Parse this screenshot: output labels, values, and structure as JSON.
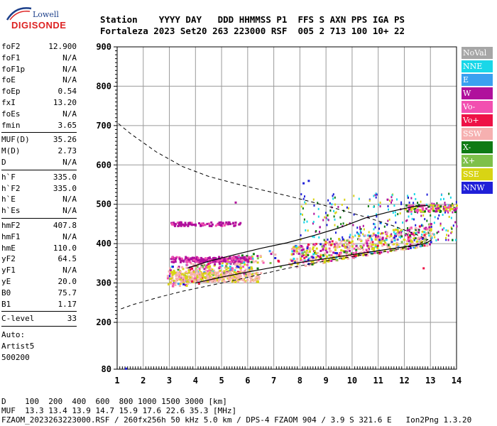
{
  "logo": {
    "top": "Lowell",
    "main": "DIGISONDE"
  },
  "header": {
    "labels": [
      "Station",
      "YYYY DAY",
      "DDD HHMMSS P1",
      "FFS S AXN PPS IGA PS"
    ],
    "values": [
      "Fortaleza",
      "2023 Set20",
      "263 223000 RSF",
      "005 2 713 100 10+ 22"
    ]
  },
  "params": {
    "group1": [
      {
        "name": "foF2",
        "value": "12.900"
      },
      {
        "name": "foF1",
        "value": "N/A"
      },
      {
        "name": "foF1p",
        "value": "N/A"
      },
      {
        "name": "foE",
        "value": "N/A"
      },
      {
        "name": "foEp",
        "value": "0.54"
      },
      {
        "name": "fxI",
        "value": "13.20"
      },
      {
        "name": "foEs",
        "value": "N/A"
      },
      {
        "name": "fmin",
        "value": "3.65"
      }
    ],
    "group2": [
      {
        "name": "MUF(D)",
        "value": "35.26"
      },
      {
        "name": "M(D)",
        "value": "2.73"
      },
      {
        "name": "D",
        "value": "N/A"
      }
    ],
    "group3": [
      {
        "name": "h`F",
        "value": "335.0"
      },
      {
        "name": "h`F2",
        "value": "335.0"
      },
      {
        "name": "h`E",
        "value": "N/A"
      },
      {
        "name": "h`Es",
        "value": "N/A"
      }
    ],
    "group4": [
      {
        "name": "hmF2",
        "value": "407.8"
      },
      {
        "name": "hmF1",
        "value": "N/A"
      },
      {
        "name": "hmE",
        "value": "110.0"
      },
      {
        "name": "yF2",
        "value": "64.5"
      },
      {
        "name": "yF1",
        "value": "N/A"
      },
      {
        "name": "yE",
        "value": "20.0"
      },
      {
        "name": "B0",
        "value": "75.7"
      },
      {
        "name": "B1",
        "value": "1.17"
      }
    ],
    "group5": [
      {
        "name": "C-level",
        "value": "33"
      }
    ],
    "auto": [
      "Auto:",
      "Artist5",
      "500200"
    ]
  },
  "legend": [
    {
      "label": "NoVal",
      "color": "#a6a6a6"
    },
    {
      "label": "NNE",
      "color": "#19d7e8"
    },
    {
      "label": "E",
      "color": "#3aa0f0"
    },
    {
      "label": "W",
      "color": "#b0109c"
    },
    {
      "label": "Vo-",
      "color": "#f24fb0"
    },
    {
      "label": "Vo+",
      "color": "#ee1246"
    },
    {
      "label": "SSW",
      "color": "#f6b0b0"
    },
    {
      "label": "X-",
      "color": "#0e7a14"
    },
    {
      "label": "X+",
      "color": "#7ec04a"
    },
    {
      "label": "SSE",
      "color": "#d8d414"
    },
    {
      "label": "NNW",
      "color": "#2020d8"
    }
  ],
  "footer": {
    "line1": "D    100  200  400  600  800 1000 1500 3000 [km]",
    "line2": "MUF  13.3 13.4 13.9 14.7 15.9 17.6 22.6 35.3 [MHz]",
    "line3": "FZAOM_2023263223000.RSF / 260fx256h 50 kHz 5.0 km / DPS-4 FZAOM 904 / 3.9 S 321.6 E   Ion2Png 1.3.20"
  },
  "chart_data": {
    "type": "scatter",
    "xlim": [
      1,
      14
    ],
    "ylim": [
      80,
      900
    ],
    "x_ticks": [
      1,
      2,
      3,
      4,
      5,
      6,
      7,
      8,
      9,
      10,
      11,
      12,
      13,
      14
    ],
    "y_ticks": [
      80,
      200,
      300,
      400,
      500,
      600,
      700,
      800,
      900
    ],
    "grid": true,
    "trace_o": [
      [
        3.7,
        338
      ],
      [
        4.5,
        355
      ],
      [
        5.5,
        372
      ],
      [
        6.5,
        388
      ],
      [
        7.5,
        402
      ],
      [
        8.5,
        420
      ],
      [
        9.5,
        440
      ],
      [
        10.5,
        465
      ],
      [
        11.5,
        482
      ],
      [
        12.4,
        495
      ],
      [
        12.9,
        497
      ]
    ],
    "trace_x": [
      [
        4.0,
        300
      ],
      [
        5.0,
        315
      ],
      [
        6.0,
        328
      ],
      [
        7.0,
        340
      ],
      [
        8.0,
        352
      ],
      [
        9.0,
        362
      ],
      [
        10.0,
        372
      ],
      [
        11.0,
        382
      ],
      [
        12.0,
        392
      ],
      [
        12.8,
        400
      ],
      [
        13.05,
        410
      ]
    ],
    "profile": [
      [
        1.05,
        705
      ],
      [
        1.5,
        680
      ],
      [
        2.5,
        633
      ],
      [
        3.5,
        596
      ],
      [
        4.5,
        571
      ],
      [
        5.5,
        553
      ],
      [
        6.5,
        537
      ],
      [
        7.5,
        522
      ],
      [
        8.5,
        505
      ],
      [
        9.5,
        487
      ],
      [
        10.5,
        468
      ],
      [
        11.5,
        447
      ],
      [
        12.4,
        425
      ],
      [
        12.9,
        410
      ],
      [
        12.4,
        395
      ],
      [
        11.5,
        382
      ],
      [
        10.5,
        372
      ],
      [
        9.5,
        362
      ],
      [
        8.5,
        350
      ],
      [
        7.5,
        337
      ],
      [
        6.5,
        322
      ],
      [
        5.5,
        307
      ],
      [
        4.5,
        293
      ],
      [
        3.5,
        279
      ],
      [
        2.5,
        262
      ],
      [
        1.6,
        245
      ],
      [
        1.05,
        232
      ]
    ]
  }
}
